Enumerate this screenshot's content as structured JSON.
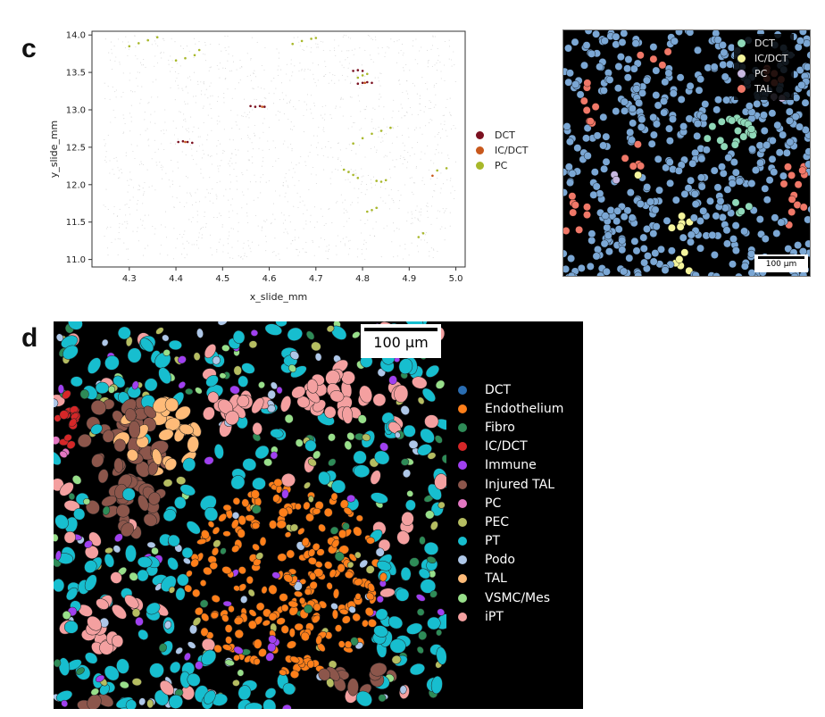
{
  "panels": {
    "c_letter": "c",
    "d_letter": "d"
  },
  "chart_data": [
    {
      "type": "scatter",
      "title": "",
      "xlabel": "x_slide_mm",
      "ylabel": "y_slide_mm",
      "xlim": [
        4.22,
        5.02
      ],
      "ylim": [
        10.9,
        14.05
      ],
      "xticks": [
        "4.3",
        "4.4",
        "4.5",
        "4.6",
        "4.7",
        "4.8",
        "4.9",
        "5.0"
      ],
      "yticks": [
        "11.0",
        "11.5",
        "12.0",
        "12.5",
        "13.0",
        "13.5",
        "14.0"
      ],
      "grid": false,
      "legend_position": "right",
      "legend": [
        {
          "name": "DCT",
          "color": "#7b1020"
        },
        {
          "name": "IC/DCT",
          "color": "#c8581c"
        },
        {
          "name": "PC",
          "color": "#a8b82a"
        }
      ],
      "background_color": "#c8c8c8",
      "series": [
        {
          "name": "DCT",
          "x": [
            4.405,
            4.415,
            4.425,
            4.435,
            4.56,
            4.57,
            4.58,
            4.59,
            4.79,
            4.8,
            4.81,
            4.82,
            4.78,
            4.79,
            4.8
          ],
          "y": [
            12.57,
            12.58,
            12.57,
            12.56,
            13.05,
            13.04,
            13.05,
            13.04,
            13.35,
            13.36,
            13.37,
            13.36,
            13.52,
            13.53,
            13.52
          ]
        },
        {
          "name": "IC/DCT",
          "x": [
            4.42,
            4.585,
            4.805,
            4.95
          ],
          "y": [
            12.57,
            13.04,
            13.36,
            12.12
          ]
        },
        {
          "name": "PC",
          "x": [
            4.3,
            4.32,
            4.34,
            4.36,
            4.4,
            4.42,
            4.44,
            4.45,
            4.65,
            4.67,
            4.69,
            4.7,
            4.78,
            4.8,
            4.82,
            4.84,
            4.86,
            4.76,
            4.77,
            4.78,
            4.79,
            4.83,
            4.84,
            4.85,
            4.81,
            4.82,
            4.83,
            4.79,
            4.8,
            4.81,
            4.92,
            4.93,
            4.96,
            4.98
          ],
          "y": [
            13.85,
            13.89,
            13.93,
            13.97,
            13.66,
            13.69,
            13.73,
            13.8,
            13.88,
            13.92,
            13.95,
            13.96,
            12.55,
            12.62,
            12.68,
            12.72,
            12.76,
            12.2,
            12.17,
            12.13,
            12.09,
            12.05,
            12.04,
            12.06,
            11.64,
            11.66,
            11.69,
            13.43,
            13.46,
            13.48,
            11.3,
            11.35,
            12.19,
            12.22
          ]
        }
      ]
    }
  ],
  "panel_c_image": {
    "legend": [
      {
        "name": "DCT",
        "color": "#8fd8b8"
      },
      {
        "name": "IC/DCT",
        "color": "#f5f59c"
      },
      {
        "name": "PC",
        "color": "#c8b8e0"
      },
      {
        "name": "TAL",
        "color": "#f07868"
      }
    ],
    "scalebar_label": "100 µm",
    "background_cell_color": "#7ba7d4"
  },
  "panel_d_image": {
    "scalebar_label": "100 µm",
    "legend": [
      {
        "name": "DCT",
        "color": "#2a6db2"
      },
      {
        "name": "Endothelium",
        "color": "#ff7f1a"
      },
      {
        "name": "Fibro",
        "color": "#2e8b57"
      },
      {
        "name": "IC/DCT",
        "color": "#d62728"
      },
      {
        "name": "Immune",
        "color": "#a040f0"
      },
      {
        "name": "Injured TAL",
        "color": "#8c564b"
      },
      {
        "name": "PC",
        "color": "#e377c2"
      },
      {
        "name": "PEC",
        "color": "#b5bd61"
      },
      {
        "name": "PT",
        "color": "#17becf"
      },
      {
        "name": "Podo",
        "color": "#aec7e8"
      },
      {
        "name": "TAL",
        "color": "#ffbb78"
      },
      {
        "name": "VSMC/Mes",
        "color": "#98df8a"
      },
      {
        "name": "iPT",
        "color": "#f4a0a0"
      }
    ]
  }
}
